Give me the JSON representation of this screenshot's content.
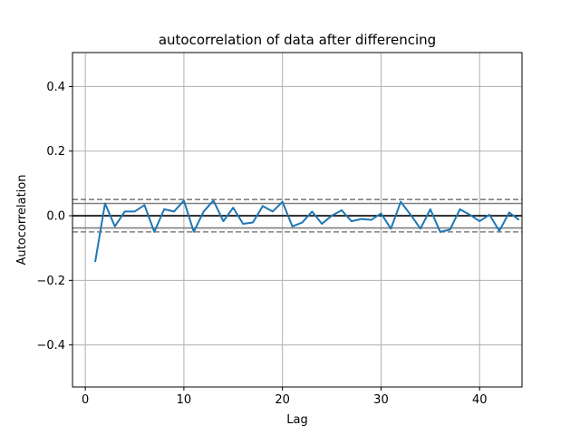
{
  "chart_data": {
    "type": "line",
    "title": "autocorrelation of data after differencing",
    "xlabel": "Lag",
    "ylabel": "Autocorrelation",
    "xlim": [
      -1.3,
      44.3
    ],
    "ylim": [
      -0.53,
      0.505
    ],
    "xticks": [
      0,
      10,
      20,
      30,
      40
    ],
    "yticks": [
      -0.4,
      -0.2,
      0.0,
      0.2,
      0.4
    ],
    "ytick_labels": [
      "−0.4",
      "−0.2",
      "0.0",
      "0.2",
      "0.4"
    ],
    "grid": true,
    "zero_line": 0.0,
    "confidence_bands": {
      "inner": [
        0.038,
        -0.038
      ],
      "outer": [
        0.05,
        -0.05
      ]
    },
    "series": [
      {
        "x": [
          1,
          2,
          3,
          4,
          5,
          6,
          7,
          8,
          9,
          10,
          11,
          12,
          13,
          14,
          15,
          16,
          17,
          18,
          19,
          20,
          21,
          22,
          23,
          24,
          25,
          26,
          27,
          28,
          29,
          30,
          31,
          32,
          33,
          34,
          35,
          36,
          37,
          38,
          39,
          40,
          41,
          42,
          43,
          44
        ],
        "values": [
          -0.143,
          0.038,
          -0.033,
          0.013,
          0.013,
          0.033,
          -0.05,
          0.02,
          0.013,
          0.047,
          -0.05,
          0.013,
          0.047,
          -0.017,
          0.025,
          -0.025,
          -0.021,
          0.03,
          0.013,
          0.043,
          -0.033,
          -0.021,
          0.013,
          -0.025,
          0.0,
          0.017,
          -0.017,
          -0.01,
          -0.013,
          0.007,
          -0.04,
          0.043,
          0.003,
          -0.04,
          0.02,
          -0.05,
          -0.043,
          0.02,
          0.003,
          -0.017,
          0.003,
          -0.047,
          0.01,
          -0.013
        ]
      }
    ],
    "colors": {
      "line": "#1f77b4",
      "grid": "#b0b0b0",
      "zero_line": "#000000",
      "bands": "#808080"
    }
  }
}
